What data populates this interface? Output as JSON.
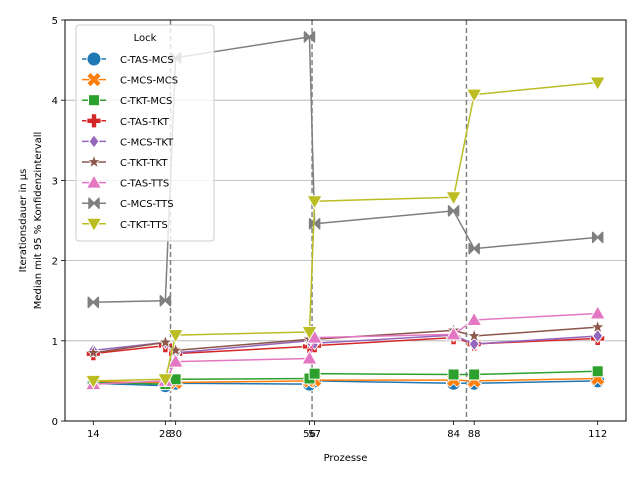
{
  "chart_data": {
    "type": "line",
    "xlabel": "Prozesse",
    "ylabel_line1": "Iterationsdauer in µs",
    "ylabel_line2": "Median mit 95 % Konfidenzintervall",
    "xlim": [
      8.5,
      117.5
    ],
    "ylim": [
      0,
      5
    ],
    "x_ticks": [
      14,
      28,
      30,
      56,
      57,
      84,
      88,
      112
    ],
    "x_tick_labels": [
      "14",
      "28",
      "30",
      "56",
      "57",
      "84",
      "88",
      "112"
    ],
    "y_ticks": [
      0,
      1,
      2,
      3,
      4,
      5
    ],
    "y_tick_labels": [
      "0",
      "1",
      "2",
      "3",
      "4",
      "5"
    ],
    "grid": "horizontal",
    "vlines": [
      29,
      56.5,
      86.5
    ],
    "legend_title": "Lock",
    "legend_position": "top-left",
    "x": [
      14,
      28,
      30,
      56,
      57,
      84,
      88,
      112
    ],
    "series": [
      {
        "name": "C-TAS-MCS",
        "color": "#1f77b4",
        "marker": "circle",
        "values": [
          0.47,
          0.44,
          0.47,
          0.46,
          0.5,
          0.47,
          0.47,
          0.5
        ]
      },
      {
        "name": "C-MCS-MCS",
        "color": "#ff7f0e",
        "marker": "x",
        "values": [
          0.49,
          0.48,
          0.48,
          0.5,
          0.51,
          0.51,
          0.5,
          0.53
        ]
      },
      {
        "name": "C-TKT-MCS",
        "color": "#2ca02c",
        "marker": "square",
        "values": [
          0.48,
          0.46,
          0.52,
          0.53,
          0.59,
          0.58,
          0.58,
          0.62
        ]
      },
      {
        "name": "C-TAS-TKT",
        "color": "#d62728",
        "marker": "plus",
        "values": [
          0.84,
          0.94,
          0.84,
          0.93,
          0.94,
          1.04,
          0.96,
          1.03
        ]
      },
      {
        "name": "C-MCS-TKT",
        "color": "#9467bd",
        "marker": "diamond",
        "values": [
          0.88,
          0.98,
          0.85,
          1.0,
          0.97,
          1.07,
          0.96,
          1.06
        ]
      },
      {
        "name": "C-TKT-TKT",
        "color": "#8c564b",
        "marker": "star",
        "values": [
          0.85,
          0.98,
          0.88,
          1.02,
          1.02,
          1.13,
          1.06,
          1.17
        ]
      },
      {
        "name": "C-TAS-TTS",
        "color": "#e377c2",
        "marker": "triangle-up",
        "values": [
          0.46,
          0.5,
          0.74,
          0.78,
          1.04,
          1.08,
          1.26,
          1.34
        ]
      },
      {
        "name": "C-MCS-TTS",
        "color": "#7f7f7f",
        "marker": "bowtie",
        "values": [
          1.48,
          1.5,
          4.53,
          4.79,
          2.46,
          2.62,
          2.15,
          2.29
        ]
      },
      {
        "name": "C-TKT-TTS",
        "color": "#bcbd22",
        "marker": "triangle-down",
        "values": [
          0.5,
          0.52,
          1.07,
          1.11,
          2.74,
          2.79,
          4.07,
          4.22
        ]
      }
    ]
  }
}
